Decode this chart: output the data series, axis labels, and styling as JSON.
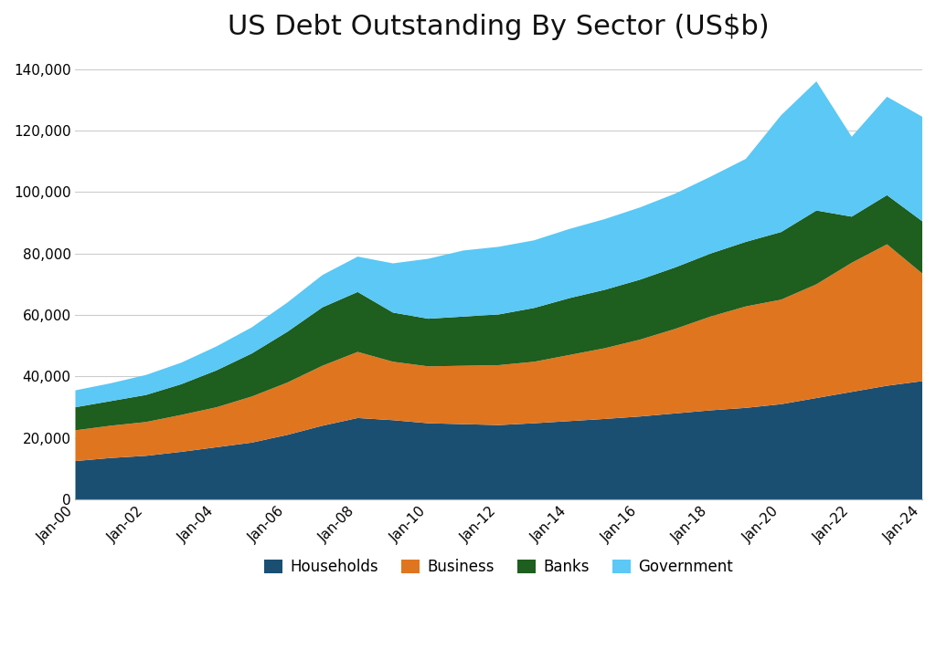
{
  "title": "US Debt Outstanding By Sector (US$b)",
  "background_color": "#ffffff",
  "title_fontsize": 22,
  "legend_labels": [
    "Households",
    "Business",
    "Banks",
    "Government"
  ],
  "colors": {
    "Households": "#1b4f72",
    "Business": "#e07520",
    "Banks": "#1e5e1e",
    "Government": "#5bc8f5"
  },
  "x_labels": [
    "Jan-00",
    "Jan-02",
    "Jan-04",
    "Jan-06",
    "Jan-08",
    "Jan-10",
    "Jan-12",
    "Jan-14",
    "Jan-16",
    "Jan-18",
    "Jan-20",
    "Jan-22",
    "Jan-24"
  ],
  "x_positions": [
    2000,
    2002,
    2004,
    2006,
    2008,
    2010,
    2012,
    2014,
    2016,
    2018,
    2020,
    2022,
    2024
  ],
  "years": [
    2000,
    2001,
    2002,
    2003,
    2004,
    2005,
    2006,
    2007,
    2008,
    2009,
    2010,
    2011,
    2012,
    2013,
    2014,
    2015,
    2016,
    2017,
    2018,
    2019,
    2020,
    2021,
    2022,
    2023,
    2024
  ],
  "Households": [
    12500,
    13500,
    14200,
    15500,
    17000,
    18500,
    21000,
    24000,
    26500,
    25800,
    24800,
    24500,
    24200,
    24800,
    25500,
    26200,
    27000,
    28000,
    29000,
    29800,
    31000,
    33000,
    35000,
    37000,
    38500
  ],
  "Business": [
    10000,
    10500,
    11000,
    12000,
    13000,
    15000,
    17000,
    19500,
    21500,
    19000,
    18500,
    19000,
    19500,
    20000,
    21500,
    23000,
    25000,
    27500,
    30500,
    33000,
    34000,
    37000,
    42000,
    46000,
    35000
  ],
  "Banks": [
    7500,
    8000,
    8800,
    10000,
    12000,
    14000,
    16500,
    19000,
    19500,
    16000,
    15500,
    16000,
    16500,
    17500,
    18500,
    19000,
    19500,
    20000,
    20500,
    21000,
    22000,
    24000,
    15000,
    16000,
    17000
  ],
  "Government": [
    5500,
    5800,
    6500,
    7000,
    7800,
    8500,
    9500,
    10500,
    11500,
    16000,
    19500,
    21500,
    22000,
    22000,
    22500,
    23000,
    23500,
    24000,
    25000,
    27000,
    38000,
    42000,
    26000,
    32000,
    34000
  ],
  "ylim": [
    0,
    145000
  ],
  "yticks": [
    0,
    20000,
    40000,
    60000,
    80000,
    100000,
    120000,
    140000
  ],
  "grid_color": "#cccccc"
}
